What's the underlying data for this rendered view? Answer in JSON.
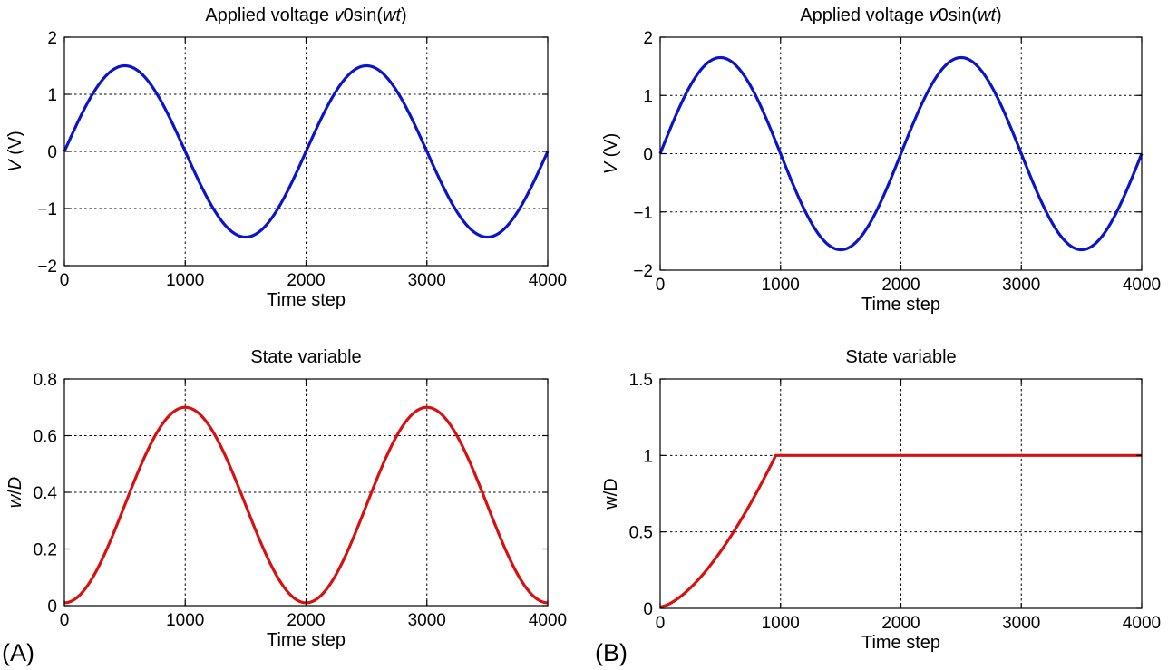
{
  "panel_labels": [
    "(A)",
    "(B)"
  ],
  "chart_data": [
    {
      "id": "a-top",
      "type": "line",
      "title_parts": [
        {
          "text": "Applied voltage ",
          "italic": false
        },
        {
          "text": "v",
          "italic": true
        },
        {
          "text": "0sin(",
          "italic": false
        },
        {
          "text": "wt",
          "italic": true
        },
        {
          "text": ")",
          "italic": false
        }
      ],
      "xlabel": "Time step",
      "ylabel_parts": [
        {
          "text": "V",
          "italic": true
        },
        {
          "text": " (V)",
          "italic": false
        }
      ],
      "xlim": [
        0,
        4000
      ],
      "ylim": [
        -2,
        2
      ],
      "xticks": [
        0,
        1000,
        2000,
        3000,
        4000
      ],
      "xtick_labels": [
        "0",
        "1000",
        "2000",
        "3000",
        "4000"
      ],
      "yticks": [
        -2,
        -1,
        0,
        1,
        2
      ],
      "ytick_labels": [
        "−2",
        "−1",
        "0",
        "1",
        "2"
      ],
      "grid": true,
      "color": "#0a14c8",
      "function": {
        "kind": "sine",
        "amplitude": 1.5,
        "period": 2000
      }
    },
    {
      "id": "b-top",
      "type": "line",
      "title_parts": [
        {
          "text": "Applied voltage ",
          "italic": false
        },
        {
          "text": "v",
          "italic": true
        },
        {
          "text": "0sin(",
          "italic": false
        },
        {
          "text": "wt",
          "italic": true
        },
        {
          "text": ")",
          "italic": false
        }
      ],
      "xlabel": "Time step",
      "ylabel_parts": [
        {
          "text": "V",
          "italic": true
        },
        {
          "text": " (V)",
          "italic": false
        }
      ],
      "xlim": [
        0,
        4000
      ],
      "ylim": [
        -2,
        2
      ],
      "xticks": [
        0,
        1000,
        2000,
        3000,
        4000
      ],
      "xtick_labels": [
        "0",
        "1000",
        "2000",
        "3000",
        "4000"
      ],
      "yticks": [
        -2,
        -1,
        0,
        1,
        2
      ],
      "ytick_labels": [
        "−2",
        "−1",
        "0",
        "1",
        "2"
      ],
      "grid": true,
      "color": "#0a14c8",
      "function": {
        "kind": "sine",
        "amplitude": 1.65,
        "period": 2000
      }
    },
    {
      "id": "a-bottom",
      "type": "line",
      "title_parts": [
        {
          "text": "State variable",
          "italic": false
        }
      ],
      "xlabel": "Time step",
      "ylabel_parts": [
        {
          "text": "w",
          "italic": true
        },
        {
          "text": "/",
          "italic": false
        },
        {
          "text": "D",
          "italic": true
        }
      ],
      "xlim": [
        0,
        4000
      ],
      "ylim": [
        0,
        0.8
      ],
      "xticks": [
        0,
        1000,
        2000,
        3000,
        4000
      ],
      "xtick_labels": [
        "0",
        "1000",
        "2000",
        "3000",
        "4000"
      ],
      "yticks": [
        0,
        0.2,
        0.4,
        0.6,
        0.8
      ],
      "ytick_labels": [
        "0",
        "0.2",
        "0.4",
        "0.6",
        "0.8"
      ],
      "grid": true,
      "color": "#d81010",
      "function": {
        "kind": "raised-cosine",
        "offset": 0.01,
        "peak": 0.7,
        "period": 2000
      }
    },
    {
      "id": "b-bottom",
      "type": "line",
      "title_parts": [
        {
          "text": "State variable",
          "italic": false
        }
      ],
      "xlabel": "Time step",
      "ylabel_parts": [
        {
          "text": "w/D",
          "italic": false
        }
      ],
      "xlim": [
        0,
        4000
      ],
      "ylim": [
        0,
        1.5
      ],
      "xticks": [
        0,
        1000,
        2000,
        3000,
        4000
      ],
      "xtick_labels": [
        "0",
        "1000",
        "2000",
        "3000",
        "4000"
      ],
      "yticks": [
        0,
        0.5,
        1,
        1.5
      ],
      "ytick_labels": [
        "0",
        "0.5",
        "1",
        "1.5"
      ],
      "grid": true,
      "color": "#d81010",
      "function": {
        "kind": "saturating",
        "offset": 0.01,
        "saturation": 1.0,
        "saturation_at": 960
      }
    }
  ]
}
